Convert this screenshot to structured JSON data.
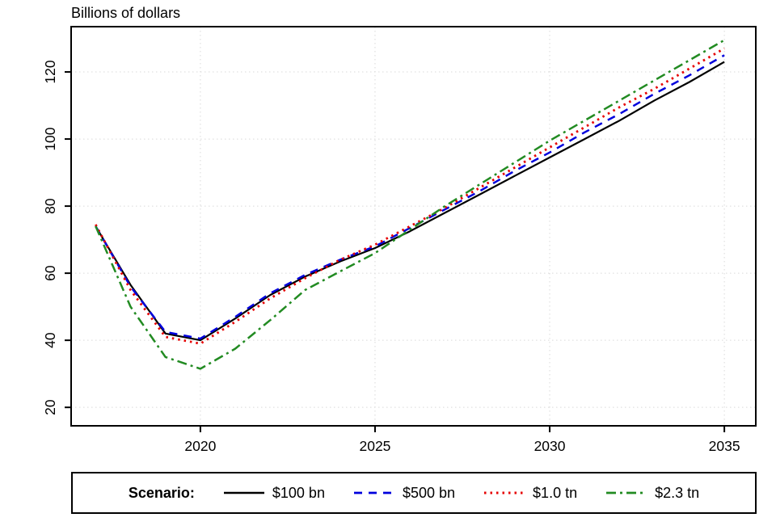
{
  "title": "Billions of dollars",
  "legend": {
    "label": "Scenario:"
  },
  "chart_data": {
    "type": "line",
    "title": "Billions of dollars",
    "xlabel": "",
    "ylabel": "Billions of dollars",
    "grid": true,
    "legend_position": "bottom",
    "xlim": [
      2016.3,
      2035.9
    ],
    "ylim": [
      14.5,
      133.5
    ],
    "xticks": [
      2020,
      2025,
      2030,
      2035
    ],
    "yticks": [
      20,
      40,
      60,
      80,
      100,
      120
    ],
    "x": [
      2017,
      2018,
      2019,
      2020,
      2021,
      2022,
      2023,
      2024,
      2025,
      2026,
      2027,
      2028,
      2029,
      2030,
      2031,
      2032,
      2033,
      2034,
      2035
    ],
    "series": [
      {
        "name": "$100 bn",
        "color": "#000000",
        "dasharray": "",
        "width": 2.2,
        "values": [
          74,
          56.5,
          42,
          40,
          46.5,
          53.5,
          59,
          63.5,
          67.5,
          72.5,
          78,
          83.5,
          89,
          94.5,
          100,
          105.5,
          111.5,
          117,
          123
        ]
      },
      {
        "name": "$500 bn",
        "color": "#0000dd",
        "dasharray": "10,8",
        "width": 2.5,
        "values": [
          74,
          56,
          42.5,
          40.5,
          47,
          54,
          59.5,
          64,
          68,
          73.5,
          79,
          84.5,
          90.5,
          96,
          102,
          107.5,
          113.5,
          119,
          125
        ]
      },
      {
        "name": "$1.0 tn",
        "color": "#e60000",
        "dasharray": "2.5,5",
        "width": 2.8,
        "values": [
          74.5,
          55,
          41,
          39,
          45.5,
          52.5,
          58.5,
          64,
          68.5,
          74,
          79.5,
          85.5,
          91.5,
          97.5,
          103.5,
          109.5,
          115,
          121,
          127
        ]
      },
      {
        "name": "$2.3 tn",
        "color": "#228b22",
        "dasharray": "12,5,3,5",
        "width": 2.5,
        "values": [
          74,
          50,
          35,
          31.5,
          37.5,
          46,
          55,
          60.5,
          66,
          73,
          80,
          86.5,
          93,
          99.5,
          105.5,
          111.5,
          117.5,
          123.5,
          129.5
        ]
      }
    ]
  }
}
